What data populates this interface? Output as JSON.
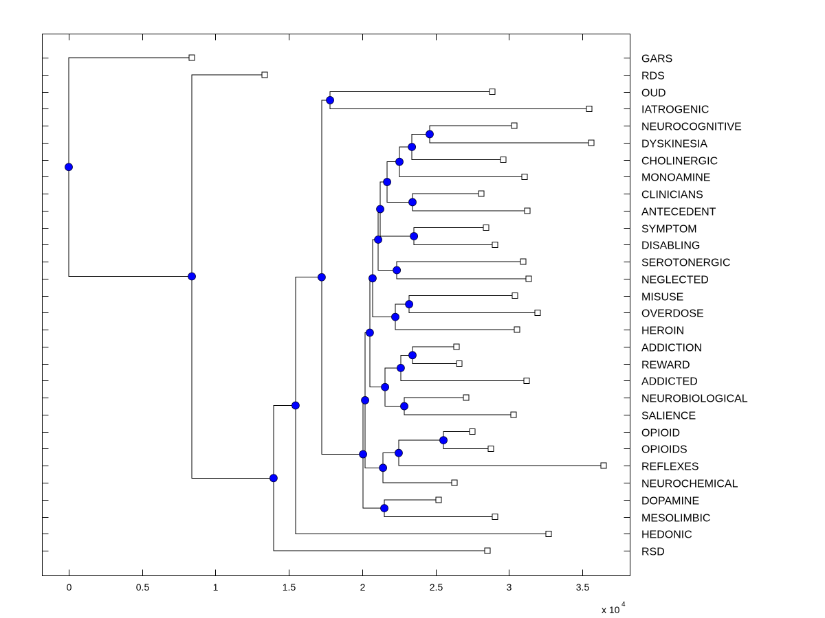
{
  "chart_data": {
    "type": "dendrogram",
    "title": "",
    "xlabel": "",
    "ylabel": "",
    "x_multiplier_label": "x 10",
    "x_multiplier_exponent": "4",
    "x_scale": 10000,
    "xlim": [
      -0.18,
      3.83
    ],
    "xticks": [
      0,
      0.5,
      1,
      1.5,
      2,
      2.5,
      3,
      3.5
    ],
    "xtick_labels": [
      "0",
      "0.5",
      "1",
      "1.5",
      "2",
      "2.5",
      "3",
      "3.5"
    ],
    "grid": false,
    "colors": {
      "node": "#0000ff",
      "leaf_fill": "#ffffff",
      "line": "#000000"
    },
    "leaf_order": [
      "GARS",
      "RDS",
      "OUD",
      "IATROGENIC",
      "NEUROCOGNITIVE",
      "DYSKINESIA",
      "CHOLINERGIC",
      "MONOAMINE",
      "CLINICIANS",
      "ANTECEDENT",
      "SYMPTOM",
      "DISABLING",
      "SEROTONERGIC",
      "NEGLECTED",
      "MISUSE",
      "OVERDOSE",
      "HEROIN",
      "ADDICTION",
      "REWARD",
      "ADDICTED",
      "NEUROBIOLOGICAL",
      "SALIENCE",
      "OPIOID",
      "OPIOIDS",
      "REFLEXES",
      "NEUROCHEMICAL",
      "DOPAMINE",
      "MESOLIMBIC",
      "HEDONIC",
      "RSD"
    ],
    "tree": {
      "x": 0,
      "children": [
        {
          "leaf": "GARS",
          "x": 0.839
        },
        {
          "x": 0.839,
          "children": [
            {
              "leaf": "RDS",
              "x": 1.336
            },
            {
              "x": 1.396,
              "children": [
                {
                  "x": 1.546,
                  "children": [
                    {
                      "x": 1.724,
                      "children": [
                        {
                          "x": 1.781,
                          "children": [
                            {
                              "leaf": "OUD",
                              "x": 2.887
                            },
                            {
                              "leaf": "IATROGENIC",
                              "x": 3.547
                            }
                          ]
                        },
                        {
                          "x": 2.006,
                          "children": [
                            {
                              "x": 2.02,
                              "children": [
                                {
                                  "x": 2.052,
                                  "children": [
                                    {
                                      "x": 2.071,
                                      "children": [
                                        {
                                          "x": 2.109,
                                          "children": [
                                            {
                                              "x": 2.123,
                                              "children": [
                                                {
                                                  "x": 2.17,
                                                  "children": [
                                                    {
                                                      "x": 2.254,
                                                      "children": [
                                                        {
                                                          "x": 2.339,
                                                          "children": [
                                                            {
                                                              "x": 2.46,
                                                              "children": [
                                                                {
                                                                  "leaf": "NEUROCOGNITIVE",
                                                                  "x": 3.037
                                                                },
                                                                {
                                                                  "leaf": "DYSKINESIA",
                                                                  "x": 3.561
                                                                }
                                                              ]
                                                            },
                                                            {
                                                              "leaf": "CHOLINERGIC",
                                                              "x": 2.962
                                                            }
                                                          ]
                                                        },
                                                        {
                                                          "leaf": "MONOAMINE",
                                                          "x": 3.107
                                                        }
                                                      ]
                                                    },
                                                    {
                                                      "x": 2.343,
                                                      "children": [
                                                        {
                                                          "leaf": "CLINICIANS",
                                                          "x": 2.812
                                                        },
                                                        {
                                                          "leaf": "ANTECEDENT",
                                                          "x": 3.126
                                                        }
                                                      ]
                                                    }
                                                  ]
                                                },
                                                {
                                                  "x": 2.353,
                                                  "children": [
                                                    {
                                                      "leaf": "SYMPTOM",
                                                      "x": 2.844
                                                    },
                                                    {
                                                      "leaf": "DISABLING",
                                                      "x": 2.905
                                                    }
                                                  ]
                                                }
                                              ]
                                            },
                                            {
                                              "x": 2.236,
                                              "children": [
                                                {
                                                  "leaf": "SEROTONERGIC",
                                                  "x": 3.097
                                                },
                                                {
                                                  "leaf": "NEGLECTED",
                                                  "x": 3.135
                                                }
                                              ]
                                            }
                                          ]
                                        },
                                        {
                                          "x": 2.226,
                                          "children": [
                                            {
                                              "x": 2.32,
                                              "children": [
                                                {
                                                  "leaf": "MISUSE",
                                                  "x": 3.041
                                                },
                                                {
                                                  "leaf": "OVERDOSE",
                                                  "x": 3.196
                                                }
                                              ]
                                            },
                                            {
                                              "leaf": "HEROIN",
                                              "x": 3.055
                                            }
                                          ]
                                        }
                                      ]
                                    },
                                    {
                                      "x": 2.156,
                                      "children": [
                                        {
                                          "x": 2.263,
                                          "children": [
                                            {
                                              "x": 2.343,
                                              "children": [
                                                {
                                                  "leaf": "ADDICTION",
                                                  "x": 2.643
                                                },
                                                {
                                                  "leaf": "REWARD",
                                                  "x": 2.662
                                                }
                                              ]
                                            },
                                            {
                                              "leaf": "ADDICTED",
                                              "x": 3.121
                                            }
                                          ]
                                        },
                                        {
                                          "x": 2.287,
                                          "children": [
                                            {
                                              "leaf": "NEUROBIOLOGICAL",
                                              "x": 2.709
                                            },
                                            {
                                              "leaf": "SALIENCE",
                                              "x": 3.032
                                            }
                                          ]
                                        }
                                      ]
                                    }
                                  ]
                                },
                                {
                                  "x": 2.142,
                                  "children": [
                                    {
                                      "x": 2.249,
                                      "children": [
                                        {
                                          "x": 2.554,
                                          "children": [
                                            {
                                              "leaf": "OPIOID",
                                              "x": 2.751
                                            },
                                            {
                                              "leaf": "OPIOIDS",
                                              "x": 2.877
                                            }
                                          ]
                                        },
                                        {
                                          "leaf": "REFLEXES",
                                          "x": 3.646
                                        }
                                      ]
                                    },
                                    {
                                      "leaf": "NEUROCHEMICAL",
                                      "x": 2.629
                                    }
                                  ]
                                }
                              ]
                            },
                            {
                              "x": 2.151,
                              "children": [
                                {
                                  "leaf": "DOPAMINE",
                                  "x": 2.521
                                },
                                {
                                  "leaf": "MESOLIMBIC",
                                  "x": 2.905
                                }
                              ]
                            }
                          ]
                        }
                      ]
                    },
                    {
                      "leaf": "HEDONIC",
                      "x": 3.271
                    }
                  ]
                },
                {
                  "leaf": "RSD",
                  "x": 2.854
                }
              ]
            }
          ]
        }
      ]
    }
  }
}
